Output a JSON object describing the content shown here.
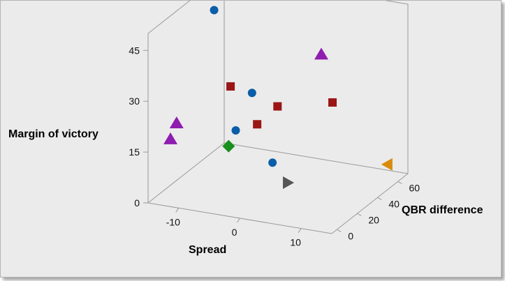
{
  "chart_data": {
    "type": "scatter",
    "projection": "3d",
    "title": "",
    "xlabel": "Spread",
    "ylabel": "QBR difference",
    "zlabel": "Margin of victory",
    "x_ticks": [
      -10,
      0,
      10
    ],
    "y_ticks": [
      0,
      20,
      40,
      60
    ],
    "z_ticks": [
      0,
      15,
      30,
      45
    ],
    "xlim": [
      -15,
      15
    ],
    "ylim": [
      -5,
      70
    ],
    "zlim": [
      0,
      50
    ],
    "grid": false,
    "legend": "none",
    "series": [
      {
        "marker": "circle",
        "color": "#0b5ea8",
        "points": [
          {
            "x": -13,
            "y": 48,
            "z": 45
          },
          {
            "x": -3,
            "y": 25,
            "z": 29
          },
          {
            "x": -4,
            "y": 15,
            "z": 20
          },
          {
            "x": 3,
            "y": 9,
            "z": 14
          }
        ]
      },
      {
        "marker": "triangle-up",
        "color": "#8e1db0",
        "points": [
          {
            "x": -12,
            "y": 5,
            "z": 22
          },
          {
            "x": -13,
            "y": 5,
            "z": 17
          },
          {
            "x": 5,
            "y": 45,
            "z": 38
          }
        ]
      },
      {
        "marker": "square",
        "color": "#9b1515",
        "points": [
          {
            "x": -7,
            "y": 28,
            "z": 29
          },
          {
            "x": 1,
            "y": 26,
            "z": 26
          },
          {
            "x": 6,
            "y": 50,
            "z": 23
          },
          {
            "x": -1,
            "y": 18,
            "z": 22
          }
        ]
      },
      {
        "marker": "diamond",
        "color": "#17901c",
        "points": [
          {
            "x": -4,
            "y": 8,
            "z": 17
          }
        ]
      },
      {
        "marker": "triangle-right",
        "color": "#555555",
        "points": [
          {
            "x": 5,
            "y": 12,
            "z": 8
          }
        ]
      },
      {
        "marker": "triangle-left",
        "color": "#d98c0a",
        "points": [
          {
            "x": 13,
            "y": 62,
            "z": 4
          }
        ]
      }
    ]
  }
}
